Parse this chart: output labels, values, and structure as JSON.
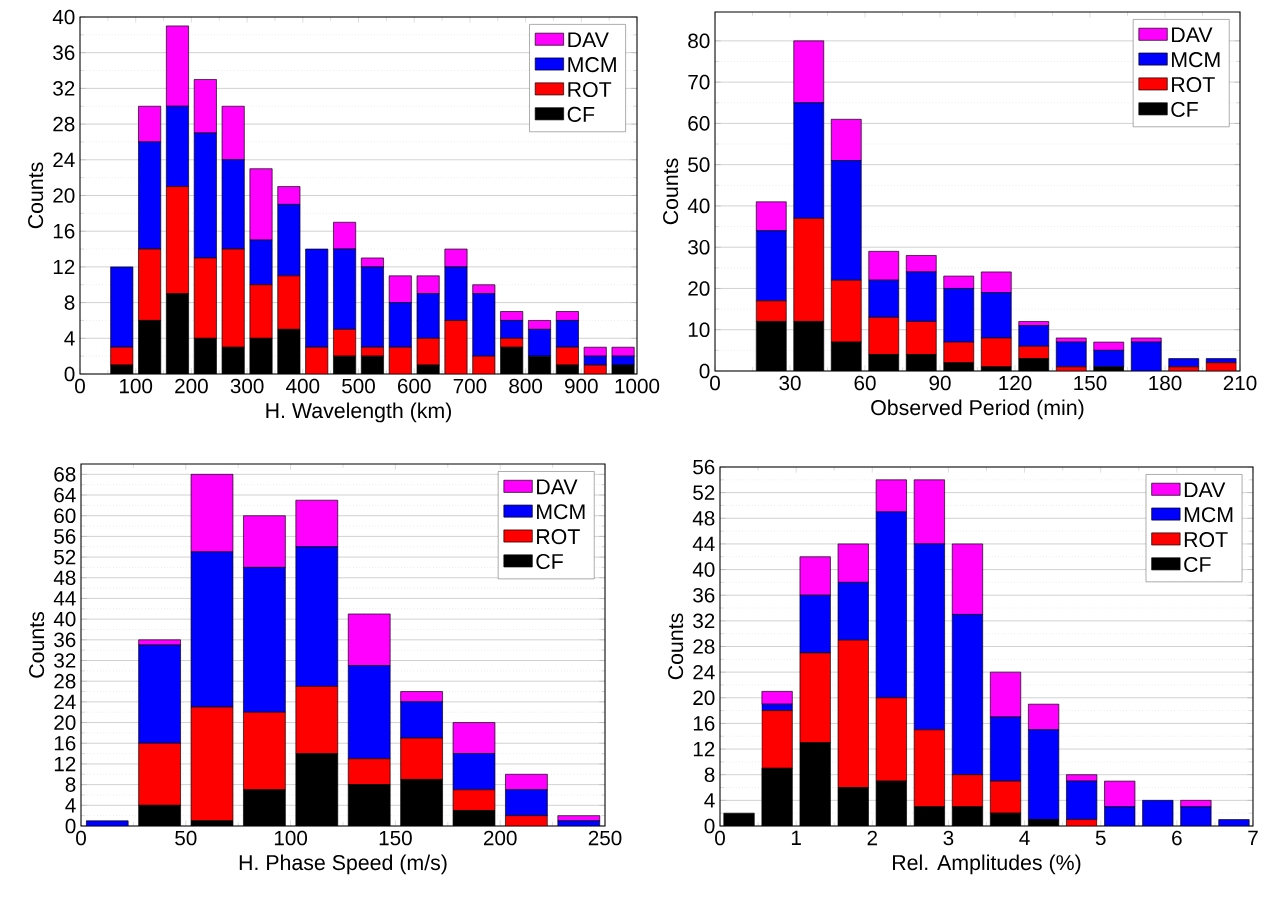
{
  "chart_data": [
    {
      "type": "bar",
      "xlabel": "H. Wavelength (km)",
      "ylabel": "Counts",
      "stacked": true,
      "grid": "y",
      "legend": "top right",
      "x": [
        75,
        125,
        175,
        225,
        275,
        325,
        375,
        425,
        475,
        525,
        575,
        625,
        675,
        725,
        775,
        825,
        875,
        925,
        975
      ],
      "xlim": [
        0,
        1000
      ],
      "xticks": [
        0,
        100,
        200,
        300,
        400,
        500,
        600,
        700,
        800,
        900,
        1000
      ],
      "ylim": [
        0,
        40
      ],
      "yticks": [
        0,
        4,
        8,
        12,
        16,
        20,
        24,
        28,
        32,
        36,
        40
      ],
      "series": [
        {
          "name": "CF",
          "color": "#000000",
          "values": [
            1,
            6,
            9,
            4,
            3,
            4,
            5,
            0,
            2,
            2,
            0,
            1,
            0,
            0,
            3,
            2,
            1,
            0,
            1
          ]
        },
        {
          "name": "ROT",
          "color": "#ff0000",
          "values": [
            2,
            8,
            12,
            9,
            11,
            6,
            6,
            3,
            3,
            1,
            3,
            3,
            6,
            2,
            1,
            0,
            2,
            1,
            0
          ]
        },
        {
          "name": "MCM",
          "color": "#0000ff",
          "values": [
            9,
            12,
            9,
            14,
            10,
            5,
            8,
            11,
            9,
            9,
            5,
            5,
            6,
            7,
            2,
            3,
            3,
            1,
            1
          ]
        },
        {
          "name": "DAV",
          "color": "#ff00ff",
          "values": [
            0,
            4,
            9,
            6,
            6,
            8,
            2,
            0,
            3,
            1,
            3,
            2,
            2,
            1,
            1,
            1,
            1,
            1,
            1
          ]
        }
      ]
    },
    {
      "type": "bar",
      "xlabel": "Observed Period (min)",
      "ylabel": "Counts",
      "stacked": true,
      "grid": "y",
      "legend": "top right",
      "x": [
        22.5,
        37.5,
        52.5,
        67.5,
        82.5,
        97.5,
        112.5,
        127.5,
        142.5,
        157.5,
        172.5,
        187.5,
        202.5
      ],
      "xlim": [
        0,
        210
      ],
      "xticks": [
        0,
        30,
        60,
        90,
        120,
        150,
        180,
        210
      ],
      "ylim": [
        0,
        87
      ],
      "yticks": [
        0,
        10,
        20,
        30,
        40,
        50,
        60,
        70,
        80
      ],
      "series": [
        {
          "name": "CF",
          "color": "#000000",
          "values": [
            12,
            12,
            7,
            4,
            4,
            2,
            1,
            3,
            0,
            1,
            0,
            0,
            0
          ]
        },
        {
          "name": "ROT",
          "color": "#ff0000",
          "values": [
            5,
            25,
            15,
            9,
            8,
            5,
            7,
            3,
            1,
            0,
            0,
            1,
            2
          ]
        },
        {
          "name": "MCM",
          "color": "#0000ff",
          "values": [
            17,
            28,
            29,
            9,
            12,
            13,
            11,
            5,
            6,
            4,
            7,
            2,
            1
          ]
        },
        {
          "name": "DAV",
          "color": "#ff00ff",
          "values": [
            7,
            15,
            10,
            7,
            4,
            3,
            5,
            1,
            1,
            2,
            1,
            0,
            0
          ]
        }
      ]
    },
    {
      "type": "bar",
      "xlabel": "H. Phase Speed (m/s)",
      "ylabel": "Counts",
      "stacked": true,
      "grid": "y",
      "legend": "top right",
      "x": [
        12.5,
        37.5,
        62.5,
        87.5,
        112.5,
        137.5,
        162.5,
        187.5,
        212.5,
        237.5
      ],
      "xlim": [
        0,
        250
      ],
      "xticks": [
        0,
        50,
        100,
        150,
        200,
        250
      ],
      "ylim": [
        0,
        70
      ],
      "yticks": [
        0,
        4,
        8,
        12,
        16,
        20,
        24,
        28,
        32,
        36,
        40,
        44,
        48,
        52,
        56,
        60,
        64,
        68
      ],
      "series": [
        {
          "name": "CF",
          "color": "#000000",
          "values": [
            0,
            4,
            1,
            7,
            14,
            8,
            9,
            3,
            0,
            0
          ]
        },
        {
          "name": "ROT",
          "color": "#ff0000",
          "values": [
            0,
            12,
            22,
            15,
            13,
            5,
            8,
            4,
            2,
            0
          ]
        },
        {
          "name": "MCM",
          "color": "#0000ff",
          "values": [
            1,
            19,
            30,
            28,
            27,
            18,
            7,
            7,
            5,
            1
          ]
        },
        {
          "name": "DAV",
          "color": "#ff00ff",
          "values": [
            0,
            1,
            15,
            10,
            9,
            10,
            2,
            6,
            3,
            1
          ]
        }
      ]
    },
    {
      "type": "bar",
      "xlabel": "Rel. Amplitudes (%)",
      "ylabel": "Counts",
      "stacked": true,
      "grid": "y",
      "legend": "top right",
      "x": [
        0.25,
        0.75,
        1.25,
        1.75,
        2.25,
        2.75,
        3.25,
        3.75,
        4.25,
        4.75,
        5.25,
        5.75,
        6.25,
        6.75
      ],
      "xlim": [
        0,
        7
      ],
      "xticks": [
        0,
        1,
        2,
        3,
        4,
        5,
        6,
        7
      ],
      "ylim": [
        0,
        56
      ],
      "yticks": [
        0,
        4,
        8,
        12,
        16,
        20,
        24,
        28,
        32,
        36,
        40,
        44,
        48,
        52,
        56
      ],
      "series": [
        {
          "name": "CF",
          "color": "#000000",
          "values": [
            2,
            9,
            13,
            6,
            7,
            3,
            3,
            2,
            1,
            0,
            0,
            0,
            0,
            0
          ]
        },
        {
          "name": "ROT",
          "color": "#ff0000",
          "values": [
            0,
            9,
            14,
            23,
            13,
            12,
            5,
            5,
            0,
            1,
            0,
            0,
            0,
            0
          ]
        },
        {
          "name": "MCM",
          "color": "#0000ff",
          "values": [
            0,
            1,
            9,
            9,
            29,
            29,
            25,
            10,
            14,
            6,
            3,
            4,
            3,
            1
          ]
        },
        {
          "name": "DAV",
          "color": "#ff00ff",
          "values": [
            0,
            2,
            6,
            6,
            5,
            10,
            11,
            7,
            4,
            1,
            4,
            0,
            1,
            0
          ]
        }
      ]
    }
  ]
}
